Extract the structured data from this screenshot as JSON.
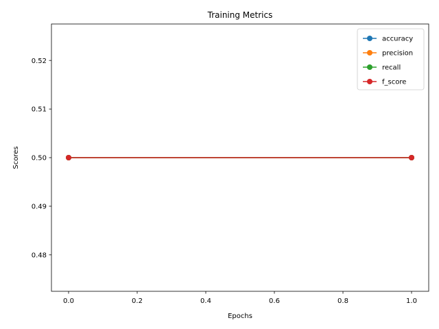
{
  "chart_data": {
    "type": "line",
    "title": "Training Metrics",
    "xlabel": "Epochs",
    "ylabel": "Scores",
    "x": [
      0.0,
      1.0
    ],
    "xlim": [
      -0.05,
      1.05
    ],
    "ylim": [
      0.4725,
      0.5275
    ],
    "xticks": [
      0.0,
      0.2,
      0.4,
      0.6,
      0.8,
      1.0
    ],
    "xtick_labels": [
      "0.0",
      "0.2",
      "0.4",
      "0.6",
      "0.8",
      "1.0"
    ],
    "yticks": [
      0.48,
      0.49,
      0.5,
      0.51,
      0.52
    ],
    "ytick_labels": [
      "0.48",
      "0.49",
      "0.50",
      "0.51",
      "0.52"
    ],
    "grid": false,
    "legend_position": "top-right",
    "series": [
      {
        "name": "accuracy",
        "color": "#1f77b4",
        "marker": "circle",
        "values": [
          0.5,
          0.5
        ]
      },
      {
        "name": "precision",
        "color": "#ff7f0e",
        "marker": "circle",
        "values": [
          0.5,
          0.5
        ]
      },
      {
        "name": "recall",
        "color": "#2ca02c",
        "marker": "circle",
        "values": [
          0.5,
          0.5
        ]
      },
      {
        "name": "f_score",
        "color": "#d62728",
        "marker": "circle",
        "values": [
          0.5,
          0.5
        ]
      }
    ]
  }
}
